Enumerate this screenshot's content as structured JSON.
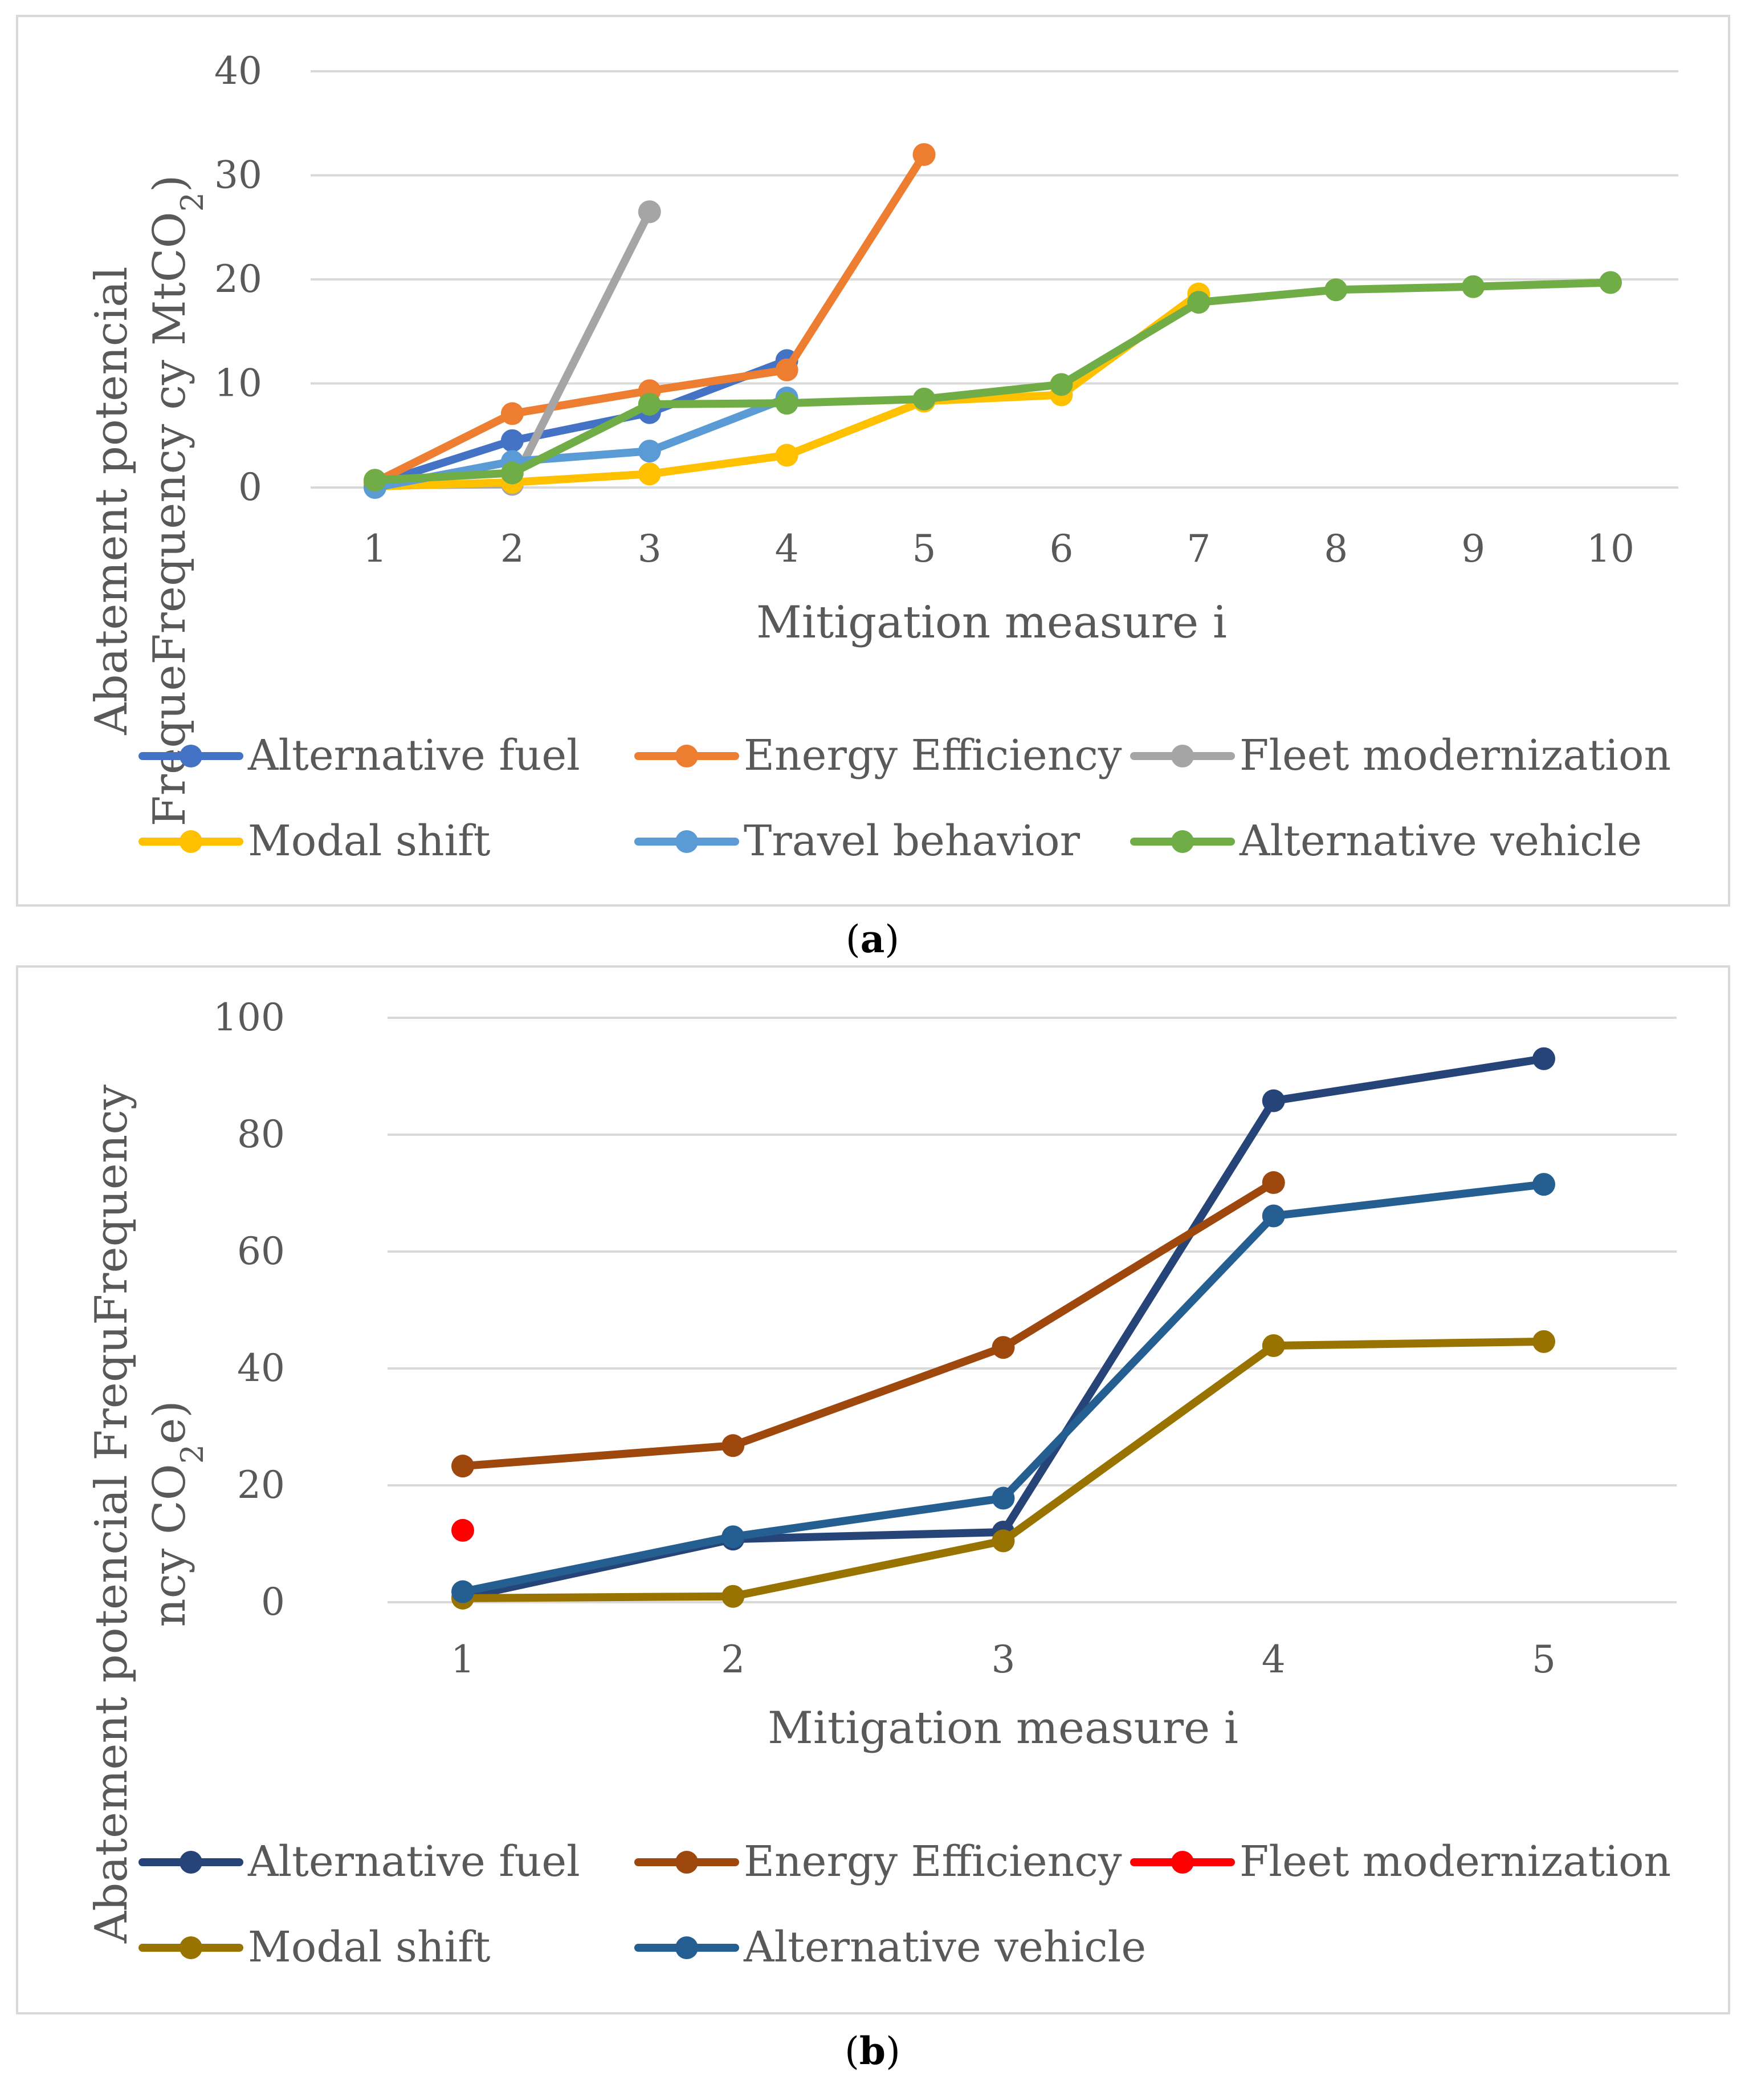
{
  "chart_data": [
    {
      "panel": "a",
      "type": "line",
      "caption_letter": "a",
      "xlabel": "Mitigation measure i",
      "ylabel_line1": "Abatement potencial",
      "ylabel_line2_prefix": "FrequeFrequency cy MtCO",
      "ylabel_line2_sub": "2",
      "ylabel_line2_suffix": ")",
      "ylim": [
        0,
        40
      ],
      "yticks": [
        0,
        10,
        20,
        30,
        40
      ],
      "xticks": [
        1,
        2,
        3,
        4,
        5,
        6,
        7,
        8,
        9,
        10
      ],
      "series": [
        {
          "name": "Alternative fuel",
          "color": "#4472c4",
          "x": [
            1,
            2,
            3,
            4
          ],
          "y": [
            0.3,
            4.5,
            7.2,
            12.2
          ]
        },
        {
          "name": "Energy Efficiency",
          "color": "#ed7d31",
          "x": [
            1,
            2,
            3,
            4,
            5
          ],
          "y": [
            0.5,
            7.1,
            9.3,
            11.3,
            32.0
          ]
        },
        {
          "name": "Fleet modernization",
          "color": "#a5a5a5",
          "x": [
            1,
            2,
            3
          ],
          "y": [
            0.2,
            0.3,
            26.5
          ]
        },
        {
          "name": "Modal shift",
          "color": "#ffc000",
          "x": [
            1,
            2,
            3,
            4,
            5,
            6,
            7
          ],
          "y": [
            0.1,
            0.5,
            1.3,
            3.1,
            8.3,
            8.9,
            18.6
          ]
        },
        {
          "name": "Travel behavior",
          "color": "#5b9bd5",
          "x": [
            1,
            2,
            3,
            4
          ],
          "y": [
            0.0,
            2.5,
            3.5,
            8.6
          ]
        },
        {
          "name": "Alternative vehicle",
          "color": "#70ad47",
          "x": [
            1,
            2,
            3,
            4,
            5,
            6,
            7,
            8,
            9,
            10
          ],
          "y": [
            0.7,
            1.4,
            8.0,
            8.1,
            8.5,
            9.9,
            17.8,
            19.0,
            19.3,
            19.7
          ]
        }
      ]
    },
    {
      "panel": "b",
      "type": "line",
      "caption_letter": "b",
      "xlabel": "Mitigation measure i",
      "ylabel_line1": "Abatement potencial FrequFrequency",
      "ylabel_line2_prefix": "ncy CO",
      "ylabel_line2_sub": "2",
      "ylabel_line2_suffix": "e)",
      "ylim": [
        0,
        100
      ],
      "yticks": [
        0,
        20,
        40,
        60,
        80,
        100
      ],
      "xticks": [
        1,
        2,
        3,
        4,
        5
      ],
      "series": [
        {
          "name": "Alternative fuel",
          "color": "#264478",
          "x": [
            1,
            2,
            3,
            4,
            5
          ],
          "y": [
            0.8,
            10.8,
            12.0,
            85.8,
            93.0
          ]
        },
        {
          "name": "Energy Efficiency",
          "color": "#9e480e",
          "x": [
            1,
            2,
            3,
            4
          ],
          "y": [
            23.3,
            26.8,
            43.6,
            71.8
          ]
        },
        {
          "name": "Fleet modernization",
          "color": "#ff0000",
          "x": [
            1
          ],
          "y": [
            12.3
          ]
        },
        {
          "name": "Modal shift",
          "color": "#997300",
          "x": [
            1,
            2,
            3,
            4,
            5
          ],
          "y": [
            0.7,
            1.0,
            10.5,
            43.9,
            44.6
          ]
        },
        {
          "name": "Alternative vehicle",
          "color": "#255e91",
          "x": [
            1,
            2,
            3,
            4,
            5
          ],
          "y": [
            1.8,
            11.2,
            17.8,
            66.1,
            71.5
          ]
        }
      ]
    }
  ]
}
